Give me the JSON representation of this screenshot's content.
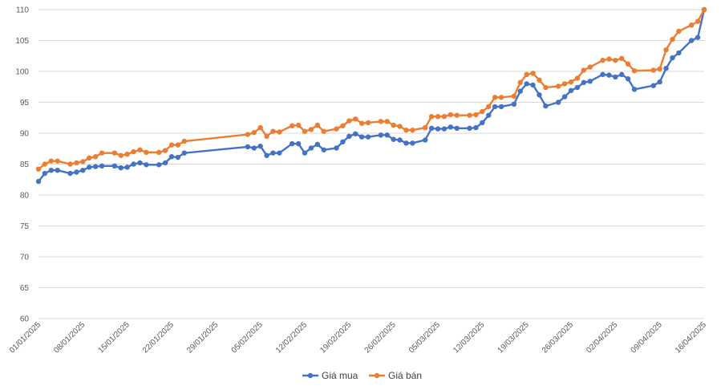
{
  "chart_data": {
    "type": "line",
    "title": "",
    "xlabel": "",
    "ylabel": "",
    "ylim": [
      60,
      110
    ],
    "yticks": [
      60,
      65,
      70,
      75,
      80,
      85,
      90,
      95,
      100,
      105,
      110
    ],
    "xlim": [
      "01/01/2025",
      "16/04/2025"
    ],
    "xtick_labels": [
      "01/01/2025",
      "08/01/2025",
      "15/01/2025",
      "22/01/2025",
      "29/01/2025",
      "05/02/2025",
      "12/02/2025",
      "19/02/2025",
      "26/02/2025",
      "05/03/2025",
      "12/03/2025",
      "19/03/2025",
      "26/03/2025",
      "02/04/2025",
      "09/04/2025",
      "16/04/2025"
    ],
    "grid": "horizontal",
    "legend": "bottom",
    "series": [
      {
        "name": "Giá mua",
        "color": "#4472c4",
        "points": [
          [
            "01/01/2025",
            82.2
          ],
          [
            "02/01/2025",
            83.5
          ],
          [
            "03/01/2025",
            84.0
          ],
          [
            "04/01/2025",
            84.0
          ],
          [
            "06/01/2025",
            83.5
          ],
          [
            "07/01/2025",
            83.7
          ],
          [
            "08/01/2025",
            84.0
          ],
          [
            "09/01/2025",
            84.5
          ],
          [
            "10/01/2025",
            84.6
          ],
          [
            "11/01/2025",
            84.7
          ],
          [
            "13/01/2025",
            84.7
          ],
          [
            "14/01/2025",
            84.4
          ],
          [
            "15/01/2025",
            84.5
          ],
          [
            "16/01/2025",
            85.0
          ],
          [
            "17/01/2025",
            85.2
          ],
          [
            "18/01/2025",
            84.9
          ],
          [
            "20/01/2025",
            84.9
          ],
          [
            "21/01/2025",
            85.2
          ],
          [
            "22/01/2025",
            86.2
          ],
          [
            "23/01/2025",
            86.1
          ],
          [
            "24/01/2025",
            86.8
          ],
          [
            "03/02/2025",
            87.8
          ],
          [
            "04/02/2025",
            87.6
          ],
          [
            "05/02/2025",
            87.9
          ],
          [
            "06/02/2025",
            86.4
          ],
          [
            "07/02/2025",
            86.8
          ],
          [
            "08/02/2025",
            86.8
          ],
          [
            "10/02/2025",
            88.3
          ],
          [
            "11/02/2025",
            88.3
          ],
          [
            "12/02/2025",
            86.8
          ],
          [
            "13/02/2025",
            87.6
          ],
          [
            "14/02/2025",
            88.2
          ],
          [
            "15/02/2025",
            87.3
          ],
          [
            "17/02/2025",
            87.6
          ],
          [
            "18/02/2025",
            88.6
          ],
          [
            "19/02/2025",
            89.5
          ],
          [
            "20/02/2025",
            89.9
          ],
          [
            "21/02/2025",
            89.4
          ],
          [
            "22/02/2025",
            89.4
          ],
          [
            "24/02/2025",
            89.7
          ],
          [
            "25/02/2025",
            89.7
          ],
          [
            "26/02/2025",
            89.0
          ],
          [
            "27/02/2025",
            88.9
          ],
          [
            "28/02/2025",
            88.4
          ],
          [
            "01/03/2025",
            88.4
          ],
          [
            "03/03/2025",
            88.9
          ],
          [
            "04/03/2025",
            90.8
          ],
          [
            "05/03/2025",
            90.7
          ],
          [
            "06/03/2025",
            90.7
          ],
          [
            "07/03/2025",
            91.0
          ],
          [
            "08/03/2025",
            90.8
          ],
          [
            "10/03/2025",
            90.8
          ],
          [
            "11/03/2025",
            90.9
          ],
          [
            "12/03/2025",
            91.7
          ],
          [
            "13/03/2025",
            92.9
          ],
          [
            "14/03/2025",
            94.3
          ],
          [
            "15/03/2025",
            94.3
          ],
          [
            "17/03/2025",
            94.7
          ],
          [
            "18/03/2025",
            96.8
          ],
          [
            "19/03/2025",
            98.0
          ],
          [
            "20/03/2025",
            97.8
          ],
          [
            "21/03/2025",
            96.2
          ],
          [
            "22/03/2025",
            94.4
          ],
          [
            "24/03/2025",
            95.0
          ],
          [
            "25/03/2025",
            95.9
          ],
          [
            "26/03/2025",
            96.9
          ],
          [
            "27/03/2025",
            97.4
          ],
          [
            "28/03/2025",
            98.2
          ],
          [
            "29/03/2025",
            98.4
          ],
          [
            "31/03/2025",
            99.5
          ],
          [
            "01/04/2025",
            99.4
          ],
          [
            "02/04/2025",
            99.1
          ],
          [
            "03/04/2025",
            99.5
          ],
          [
            "04/04/2025",
            98.8
          ],
          [
            "05/04/2025",
            97.1
          ],
          [
            "08/04/2025",
            97.7
          ],
          [
            "09/04/2025",
            98.3
          ],
          [
            "10/04/2025",
            100.5
          ],
          [
            "11/04/2025",
            102.2
          ],
          [
            "12/04/2025",
            103.0
          ],
          [
            "14/04/2025",
            105.0
          ],
          [
            "15/04/2025",
            105.5
          ],
          [
            "16/04/2025",
            110.0
          ]
        ]
      },
      {
        "name": "Giá bán",
        "color": "#ed7d31",
        "points": [
          [
            "01/01/2025",
            84.2
          ],
          [
            "02/01/2025",
            85.0
          ],
          [
            "03/01/2025",
            85.5
          ],
          [
            "04/01/2025",
            85.5
          ],
          [
            "06/01/2025",
            85.0
          ],
          [
            "07/01/2025",
            85.2
          ],
          [
            "08/01/2025",
            85.4
          ],
          [
            "09/01/2025",
            86.0
          ],
          [
            "10/01/2025",
            86.2
          ],
          [
            "11/01/2025",
            86.8
          ],
          [
            "13/01/2025",
            86.8
          ],
          [
            "14/01/2025",
            86.4
          ],
          [
            "15/01/2025",
            86.6
          ],
          [
            "16/01/2025",
            87.0
          ],
          [
            "17/01/2025",
            87.3
          ],
          [
            "18/01/2025",
            86.9
          ],
          [
            "20/01/2025",
            86.9
          ],
          [
            "21/01/2025",
            87.2
          ],
          [
            "22/01/2025",
            88.1
          ],
          [
            "23/01/2025",
            88.1
          ],
          [
            "24/01/2025",
            88.7
          ],
          [
            "03/02/2025",
            89.8
          ],
          [
            "04/02/2025",
            90.1
          ],
          [
            "05/02/2025",
            90.9
          ],
          [
            "06/02/2025",
            89.5
          ],
          [
            "07/02/2025",
            90.3
          ],
          [
            "08/02/2025",
            90.2
          ],
          [
            "10/02/2025",
            91.2
          ],
          [
            "11/02/2025",
            91.3
          ],
          [
            "12/02/2025",
            90.3
          ],
          [
            "13/02/2025",
            90.6
          ],
          [
            "14/02/2025",
            91.3
          ],
          [
            "15/02/2025",
            90.3
          ],
          [
            "17/02/2025",
            90.7
          ],
          [
            "18/02/2025",
            91.2
          ],
          [
            "19/02/2025",
            92.0
          ],
          [
            "20/02/2025",
            92.3
          ],
          [
            "21/02/2025",
            91.6
          ],
          [
            "22/02/2025",
            91.7
          ],
          [
            "24/02/2025",
            91.9
          ],
          [
            "25/02/2025",
            91.9
          ],
          [
            "26/02/2025",
            91.3
          ],
          [
            "27/02/2025",
            91.1
          ],
          [
            "28/02/2025",
            90.5
          ],
          [
            "01/03/2025",
            90.5
          ],
          [
            "03/03/2025",
            90.9
          ],
          [
            "04/03/2025",
            92.7
          ],
          [
            "05/03/2025",
            92.7
          ],
          [
            "06/03/2025",
            92.7
          ],
          [
            "07/03/2025",
            93.0
          ],
          [
            "08/03/2025",
            92.9
          ],
          [
            "10/03/2025",
            92.9
          ],
          [
            "11/03/2025",
            93.0
          ],
          [
            "12/03/2025",
            93.5
          ],
          [
            "13/03/2025",
            94.3
          ],
          [
            "14/03/2025",
            95.8
          ],
          [
            "15/03/2025",
            95.8
          ],
          [
            "17/03/2025",
            96.0
          ],
          [
            "18/03/2025",
            98.2
          ],
          [
            "19/03/2025",
            99.5
          ],
          [
            "20/03/2025",
            99.7
          ],
          [
            "21/03/2025",
            98.6
          ],
          [
            "22/03/2025",
            97.4
          ],
          [
            "24/03/2025",
            97.6
          ],
          [
            "25/03/2025",
            98.0
          ],
          [
            "26/03/2025",
            98.3
          ],
          [
            "27/03/2025",
            98.9
          ],
          [
            "28/03/2025",
            100.2
          ],
          [
            "29/03/2025",
            100.7
          ],
          [
            "31/03/2025",
            101.8
          ],
          [
            "01/04/2025",
            102.0
          ],
          [
            "02/04/2025",
            101.8
          ],
          [
            "03/04/2025",
            102.1
          ],
          [
            "04/04/2025",
            101.2
          ],
          [
            "05/04/2025",
            100.1
          ],
          [
            "08/04/2025",
            100.2
          ],
          [
            "09/04/2025",
            100.4
          ],
          [
            "10/04/2025",
            103.5
          ],
          [
            "11/04/2025",
            105.2
          ],
          [
            "12/04/2025",
            106.5
          ],
          [
            "14/04/2025",
            107.5
          ],
          [
            "15/04/2025",
            108.1
          ],
          [
            "16/04/2025",
            110.0
          ]
        ]
      }
    ]
  }
}
